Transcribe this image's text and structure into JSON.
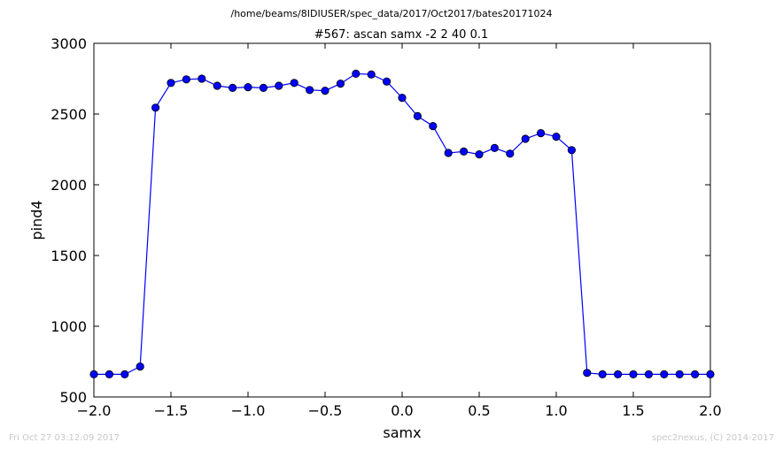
{
  "suptitle": "/home/beams/8IDIUSER/spec_data/2017/Oct2017/bates20171024",
  "footer_left": "Fri Oct 27 03:12:09 2017",
  "footer_right": "spec2nexus, (C) 2014-2017",
  "chart_data": {
    "type": "line",
    "title": "#567: ascan  samx -2 2  40 0.1",
    "xlabel": "samx",
    "ylabel": "pind4",
    "xlim": [
      -2.0,
      2.0
    ],
    "ylim": [
      500,
      3000
    ],
    "xticks": [
      "−2.0",
      "−1.5",
      "−1.0",
      "−0.5",
      "0.0",
      "0.5",
      "1.0",
      "1.5",
      "2.0"
    ],
    "yticks": [
      "500",
      "1000",
      "1500",
      "2000",
      "2500",
      "3000"
    ],
    "grid": false,
    "line_color": "#0000ff",
    "marker": "circle",
    "series": [
      {
        "x": [
          -2.0,
          -1.9,
          -1.8,
          -1.7,
          -1.6,
          -1.5,
          -1.4,
          -1.3,
          -1.2,
          -1.1,
          -1.0,
          -0.9,
          -0.8,
          -0.7,
          -0.6,
          -0.5,
          -0.4,
          -0.3,
          -0.2,
          -0.1,
          0.0,
          0.1,
          0.2,
          0.3,
          0.4,
          0.5,
          0.6,
          0.7,
          0.8,
          0.9,
          1.0,
          1.1,
          1.2,
          1.3,
          1.4,
          1.5,
          1.6,
          1.7,
          1.8,
          1.9,
          2.0
        ],
        "y": [
          660,
          660,
          660,
          715,
          2545,
          2720,
          2745,
          2750,
          2700,
          2685,
          2690,
          2685,
          2700,
          2720,
          2670,
          2665,
          2715,
          2785,
          2780,
          2730,
          2615,
          2485,
          2415,
          2225,
          2235,
          2215,
          2260,
          2220,
          2325,
          2365,
          2340,
          2245,
          670,
          660,
          660,
          660,
          660,
          660,
          660,
          660,
          660
        ]
      }
    ]
  }
}
